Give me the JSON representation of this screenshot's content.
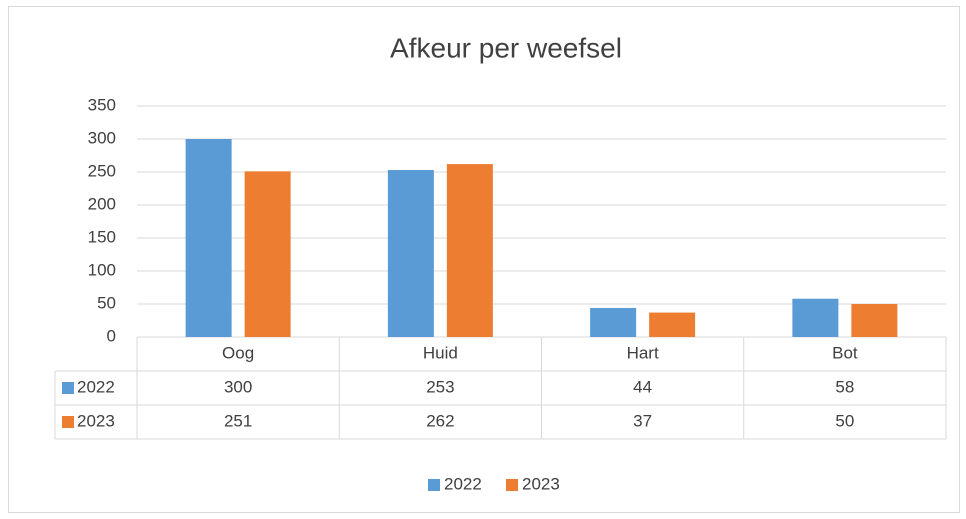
{
  "chart_data": {
    "type": "bar",
    "title": "Afkeur per weefsel",
    "categories": [
      "Oog",
      "Huid",
      "Hart",
      "Bot"
    ],
    "series": [
      {
        "name": "2022",
        "color": "#5b9bd5",
        "values": [
          300,
          253,
          44,
          58
        ]
      },
      {
        "name": "2023",
        "color": "#ed7d31",
        "values": [
          251,
          262,
          37,
          50
        ]
      }
    ],
    "ylim": [
      0,
      350
    ],
    "yticks": [
      0,
      50,
      100,
      150,
      200,
      250,
      300,
      350
    ],
    "grid": true,
    "legend": "bottom",
    "data_table": true
  }
}
